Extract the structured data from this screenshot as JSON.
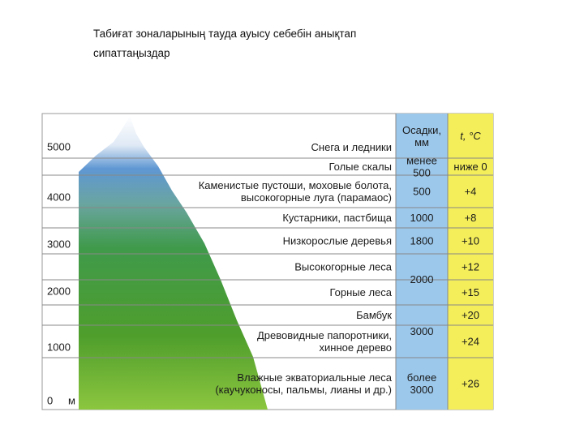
{
  "header": {
    "title_lines": [
      "Табиғат зоналарының тауда ауысу себебін анықтап",
      "сипаттаңыздар"
    ]
  },
  "diagram": {
    "altitudes": [
      "5000",
      "4000",
      "3000",
      "2000",
      "1000",
      "0"
    ],
    "altitude_unit": "м",
    "precip_header": [
      "Осадки,",
      "мм"
    ],
    "temp_header": "t, °C",
    "zones": [
      {
        "lines": [
          "Снега и ледники"
        ]
      },
      {
        "lines": [
          "Голые скалы"
        ]
      },
      {
        "lines": [
          "Каменистые пустоши, моховые болота,",
          "высокогорные луга (парамаос)"
        ]
      },
      {
        "lines": [
          "Кустарники, пастбища"
        ]
      },
      {
        "lines": [
          "Низкорослые деревья"
        ]
      },
      {
        "lines": [
          "Высокогорные леса"
        ]
      },
      {
        "lines": [
          "Горные леса"
        ]
      },
      {
        "lines": [
          "Бамбук"
        ]
      },
      {
        "lines": [
          "Древовидные папоротники,",
          "хинное дерево"
        ]
      },
      {
        "lines": [
          "Влажные экваториальные леса",
          "(каучуконосы, пальмы, лианы и др.)"
        ]
      }
    ],
    "precipitation": [
      [
        "менее",
        "500"
      ],
      [
        "500"
      ],
      [
        "1000"
      ],
      [
        "1800"
      ],
      [
        "2000"
      ],
      [
        "3000"
      ],
      [
        "более",
        "3000"
      ]
    ],
    "temperature": [
      "ниже 0",
      "+4",
      "+8",
      "+10",
      "+12",
      "+15",
      "+20",
      "+24",
      "+26"
    ]
  }
}
